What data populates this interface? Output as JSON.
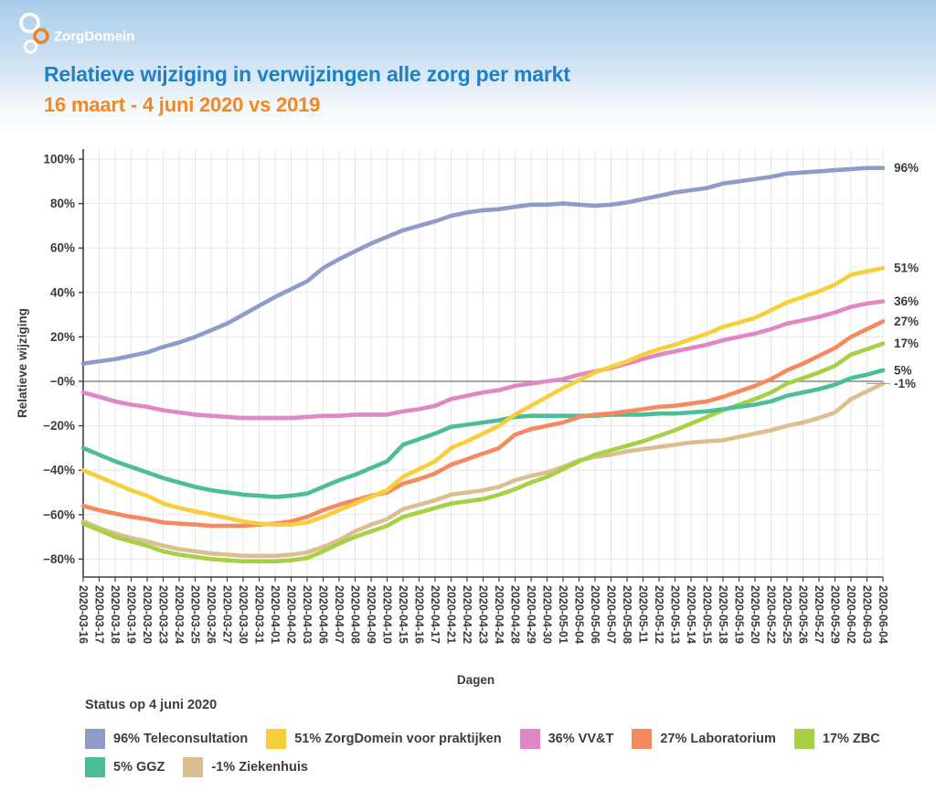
{
  "header": {
    "logo_text": "ZorgDomein",
    "title": "Relatieve wijziging in verwijzingen alle zorg per markt",
    "subtitle": "16 maart - 4 juni 2020 vs 2019",
    "brand_orange": "#f08019",
    "title_blue": "#2180c4",
    "subtitle_orange": "#f6861f"
  },
  "legend": {
    "status_label": "Status op 4 juni 2020",
    "rows": [
      [
        0,
        1,
        2,
        3,
        4
      ],
      [
        5,
        6
      ]
    ]
  },
  "chart_data": {
    "type": "line",
    "title": "Relatieve wijziging in verwijzingen alle zorg per markt",
    "subtitle": "16 maart - 4 juni 2020 vs 2019",
    "xlabel": "Dagen",
    "ylabel": "Relatieve wijziging",
    "ylim": [
      -88,
      104
    ],
    "grid": true,
    "legend_position": "bottom",
    "yticks": [
      {
        "value": 100,
        "label": "100%"
      },
      {
        "value": 80,
        "label": "80%"
      },
      {
        "value": 60,
        "label": "60%"
      },
      {
        "value": 40,
        "label": "40%"
      },
      {
        "value": 20,
        "label": "20%"
      },
      {
        "value": 0,
        "label": "−0%"
      },
      {
        "value": -20,
        "label": "−20%"
      },
      {
        "value": -40,
        "label": "−40%"
      },
      {
        "value": -60,
        "label": "−60%"
      },
      {
        "value": -80,
        "label": "−80%"
      }
    ],
    "x": [
      "2020-03-16",
      "2020-03-17",
      "2020-03-18",
      "2020-03-19",
      "2020-03-20",
      "2020-03-23",
      "2020-03-24",
      "2020-03-25",
      "2020-03-26",
      "2020-03-27",
      "2020-03-30",
      "2020-03-31",
      "2020-04-01",
      "2020-04-02",
      "2020-04-03",
      "2020-04-06",
      "2020-04-07",
      "2020-04-08",
      "2020-04-09",
      "2020-04-10",
      "2020-04-15",
      "2020-04-16",
      "2020-04-17",
      "2020-04-21",
      "2020-04-22",
      "2020-04-23",
      "2020-04-24",
      "2020-04-28",
      "2020-04-29",
      "2020-04-30",
      "2020-05-01",
      "2020-05-04",
      "2020-05-06",
      "2020-05-07",
      "2020-05-08",
      "2020-05-11",
      "2020-05-12",
      "2020-05-13",
      "2020-05-14",
      "2020-05-15",
      "2020-05-18",
      "2020-05-19",
      "2020-05-20",
      "2020-05-22",
      "2020-05-25",
      "2020-05-26",
      "2020-05-27",
      "2020-05-29",
      "2020-06-02",
      "2020-06-03",
      "2020-06-04"
    ],
    "series": [
      {
        "name": "teleconsultation",
        "legend_label": "96% Teleconsultation",
        "end_label": "96%",
        "end_value": 96,
        "color": "#8f9cca",
        "values": [
          8,
          9,
          10,
          11.5,
          13,
          15.5,
          17.5,
          20,
          23,
          26,
          30,
          34,
          38,
          41.5,
          45,
          51,
          55,
          58.5,
          62,
          65,
          68,
          70,
          72,
          74.5,
          76,
          77,
          77.5,
          78.5,
          79.5,
          79.5,
          80,
          79.5,
          79,
          79.5,
          80.5,
          82,
          83.5,
          85,
          86,
          87,
          89,
          90,
          91,
          92,
          93.5,
          94,
          94.5,
          95,
          95.5,
          96,
          96
        ]
      },
      {
        "name": "zorgdomein-voor-praktijken",
        "legend_label": "51% ZorgDomein voor praktijken",
        "end_label": "51%",
        "end_value": 51,
        "color": "#f8ce3d",
        "values": [
          -40,
          -43,
          -46,
          -49,
          -51.5,
          -55,
          -57,
          -58.5,
          -60,
          -61.5,
          -63,
          -64,
          -64.5,
          -64.5,
          -63.5,
          -61,
          -58,
          -55,
          -52,
          -49,
          -43,
          -39.5,
          -36,
          -30,
          -27,
          -23.5,
          -20,
          -15,
          -11,
          -7,
          -3,
          0.5,
          4,
          6.5,
          9,
          12,
          14.5,
          16.5,
          19,
          21.5,
          24.5,
          26.5,
          28.5,
          32,
          35.5,
          38,
          40.5,
          43.5,
          48,
          49.5,
          51
        ]
      },
      {
        "name": "vvt",
        "legend_label": "36% VV&T",
        "end_label": "36%",
        "end_value": 36,
        "color": "#e087c5",
        "values": [
          -5,
          -7,
          -9,
          -10.5,
          -11.5,
          -13,
          -14,
          -15,
          -15.5,
          -16,
          -16.5,
          -16.5,
          -16.5,
          -16.5,
          -16,
          -15.5,
          -15.5,
          -15,
          -15,
          -15,
          -13.5,
          -12.5,
          -11,
          -8,
          -6.5,
          -5,
          -4,
          -2,
          -1,
          0,
          1,
          3,
          4.5,
          6,
          8,
          10,
          12,
          13.5,
          15,
          16.5,
          18.5,
          20,
          21.5,
          23.5,
          26,
          27.5,
          29,
          31,
          33.5,
          35,
          36
        ]
      },
      {
        "name": "laboratorium",
        "legend_label": "27% Laboratorium",
        "end_label": "27%",
        "end_value": 27,
        "color": "#f68a5f",
        "values": [
          -56,
          -58,
          -59.5,
          -61,
          -62,
          -63.5,
          -64,
          -64.5,
          -65,
          -65,
          -65,
          -64.5,
          -64,
          -63,
          -61,
          -58,
          -55.5,
          -53.5,
          -51.5,
          -50,
          -46,
          -44,
          -41.5,
          -37.5,
          -35,
          -32.5,
          -30,
          -24,
          -21.5,
          -20,
          -18.5,
          -16,
          -15,
          -14.5,
          -13.5,
          -12.5,
          -11.5,
          -11,
          -10,
          -9,
          -7,
          -4.5,
          -2,
          1,
          5,
          8,
          11.5,
          15,
          20,
          23.5,
          27
        ]
      },
      {
        "name": "zbc",
        "legend_label": "17% ZBC",
        "end_label": "17%",
        "end_value": 17,
        "color": "#a6d145",
        "values": [
          -64,
          -67,
          -70,
          -72,
          -74,
          -76.5,
          -78,
          -79,
          -80,
          -80.5,
          -81,
          -81,
          -81,
          -80.5,
          -79.5,
          -76.5,
          -73,
          -70,
          -67.5,
          -65,
          -61,
          -59,
          -57,
          -55,
          -54,
          -53,
          -51,
          -48.5,
          -45.5,
          -43,
          -39.5,
          -36,
          -33,
          -31,
          -29,
          -27,
          -24.5,
          -22,
          -19,
          -16,
          -13,
          -10.5,
          -8,
          -5,
          -1,
          1.5,
          4,
          7,
          12,
          14.5,
          17
        ]
      },
      {
        "name": "ggz",
        "legend_label": "5% GGZ",
        "end_label": "5%",
        "end_value": 5,
        "color": "#4dbd98",
        "values": [
          -30,
          -33,
          -36,
          -38.5,
          -41,
          -43.5,
          -45.5,
          -47.5,
          -49,
          -50,
          -51,
          -51.5,
          -52,
          -51.5,
          -50.5,
          -47.5,
          -44.5,
          -42,
          -39,
          -36,
          -28.5,
          -26,
          -23.5,
          -20.5,
          -19.5,
          -18.5,
          -17.5,
          -16,
          -15.5,
          -15.5,
          -15.5,
          -15.5,
          -15.5,
          -15,
          -15,
          -15,
          -14.5,
          -14.5,
          -14,
          -13.5,
          -12.5,
          -11.5,
          -10.5,
          -9,
          -6.5,
          -5,
          -3.5,
          -1.5,
          1.5,
          3,
          5
        ]
      },
      {
        "name": "ziekenhuis",
        "legend_label": "-1% Ziekenhuis",
        "end_label": "-1%",
        "end_value": -1,
        "end_leader": true,
        "color": "#dcbe91",
        "values": [
          -63,
          -66,
          -68.5,
          -70.5,
          -72,
          -74,
          -75.5,
          -76.5,
          -77.5,
          -78,
          -78.5,
          -78.5,
          -78.5,
          -78,
          -77,
          -74.5,
          -71.5,
          -67.5,
          -64.5,
          -62,
          -57.5,
          -55.5,
          -53.5,
          -51,
          -50,
          -49,
          -47.5,
          -44.5,
          -42.5,
          -41,
          -38.5,
          -35.5,
          -34,
          -33,
          -31.5,
          -30.5,
          -29.5,
          -28.5,
          -27.5,
          -27,
          -26.5,
          -25,
          -23.5,
          -22,
          -20,
          -18.5,
          -16.5,
          -14,
          -8,
          -4.5,
          -1
        ]
      }
    ],
    "draw_order": [
      6,
      4,
      5,
      3,
      2,
      1,
      0
    ],
    "colors": {
      "grid": "#e7e7ea",
      "zero_line": "#8a8a8a",
      "axis": "#3f3f3f",
      "tick_text": "#3b3b3b"
    }
  }
}
